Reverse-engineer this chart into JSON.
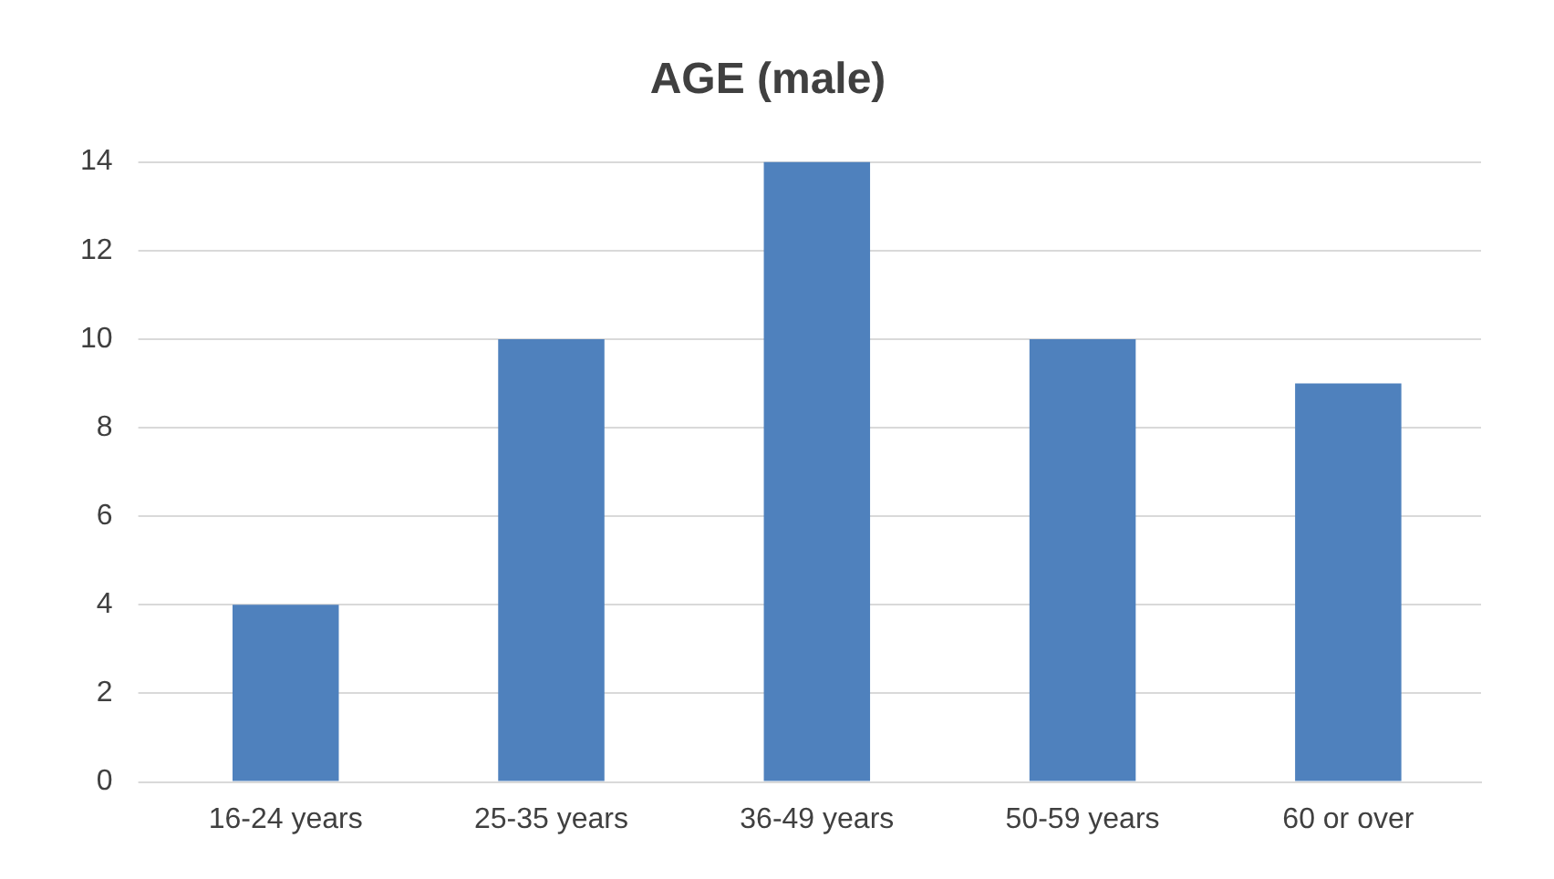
{
  "chart_data": {
    "type": "bar",
    "title": "AGE (male)",
    "categories": [
      "16-24 years",
      "25-35 years",
      "36-49 years",
      "50-59 years",
      "60 or over"
    ],
    "values": [
      4,
      10,
      14,
      10,
      9
    ],
    "color": "#4f81bd",
    "ylim": [
      0,
      14
    ],
    "yticks": [
      0,
      2,
      4,
      6,
      8,
      10,
      12,
      14
    ],
    "grid": "y"
  }
}
